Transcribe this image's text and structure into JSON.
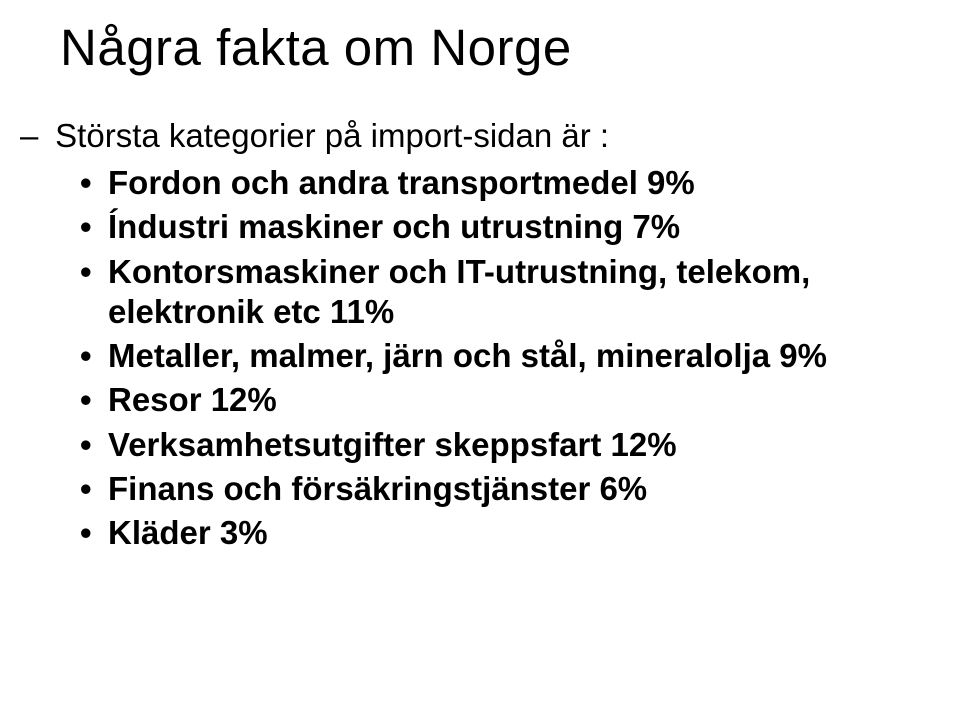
{
  "title": "Några fakta om Norge",
  "subline_prefix": "–",
  "subline": "Största kategorier på import-sidan är :",
  "bullets": [
    "Fordon och andra transportmedel 9%",
    "Índustri maskiner och utrustning 7%",
    "Kontorsmaskiner och IT-utrustning, telekom, elektronik etc 11%",
    "Metaller, malmer, järn och stål, mineralolja 9%",
    "Resor 12%",
    "Verksamhetsutgifter skeppsfart 12%",
    "Finans och försäkringstjänster 6%",
    "Kläder 3%"
  ]
}
